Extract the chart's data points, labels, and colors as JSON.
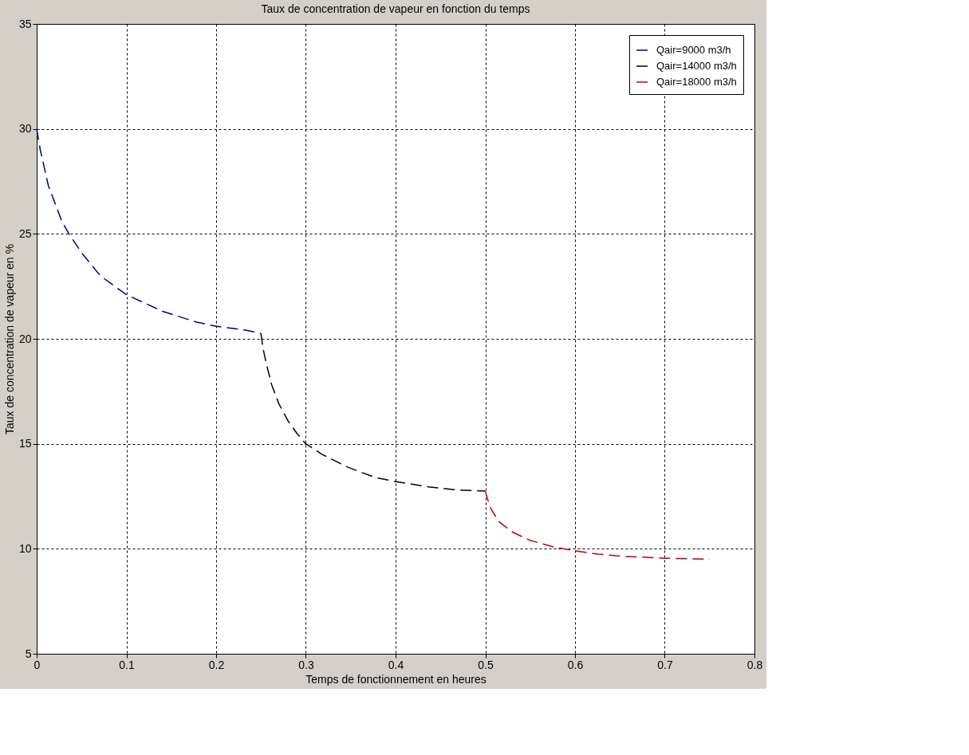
{
  "chart_data": {
    "type": "line",
    "title": "Taux de concentration de vapeur en fonction du temps",
    "xlabel": "Temps de fonctionnement en heures",
    "ylabel": "Taux de concentration de vapeur en %",
    "xlim": [
      0,
      0.8
    ],
    "xticks": [
      0,
      0.1,
      0.2,
      0.3,
      0.4,
      0.5,
      0.6,
      0.7,
      0.8
    ],
    "ylim": [
      5,
      35
    ],
    "yticks": [
      5,
      10,
      15,
      20,
      25,
      30,
      35
    ],
    "grid": true,
    "legend": "top right",
    "line_style": "dashed",
    "marker": "none",
    "series": [
      {
        "name": "Qair=9000 m3/h",
        "color": "#000080",
        "x": [
          0,
          0.004,
          0.013,
          0.028,
          0.036,
          0.05,
          0.071,
          0.1,
          0.141,
          0.178,
          0.2,
          0.235,
          0.25
        ],
        "values": [
          30,
          29.0,
          27.3,
          25.6,
          25.0,
          24.1,
          23.0,
          22.1,
          21.3,
          20.8,
          20.6,
          20.4,
          20.25
        ]
      },
      {
        "name": "Qair=14000 m3/h",
        "color": "#000000",
        "x": [
          0.25,
          0.252,
          0.256,
          0.262,
          0.27,
          0.28,
          0.29,
          0.3,
          0.318,
          0.346,
          0.377,
          0.4,
          0.437,
          0.468,
          0.5
        ],
        "values": [
          20.25,
          19.6,
          18.8,
          17.8,
          16.9,
          16.1,
          15.5,
          15.0,
          14.5,
          13.9,
          13.4,
          13.2,
          12.95,
          12.8,
          12.75
        ]
      },
      {
        "name": "Qair=18000 m3/h",
        "color": "#c00000",
        "x": [
          0.5,
          0.505,
          0.515,
          0.53,
          0.55,
          0.575,
          0.6,
          0.625,
          0.65,
          0.7,
          0.75
        ],
        "values": [
          12.75,
          12.0,
          11.3,
          10.8,
          10.4,
          10.1,
          9.9,
          9.75,
          9.65,
          9.55,
          9.5
        ]
      }
    ]
  }
}
